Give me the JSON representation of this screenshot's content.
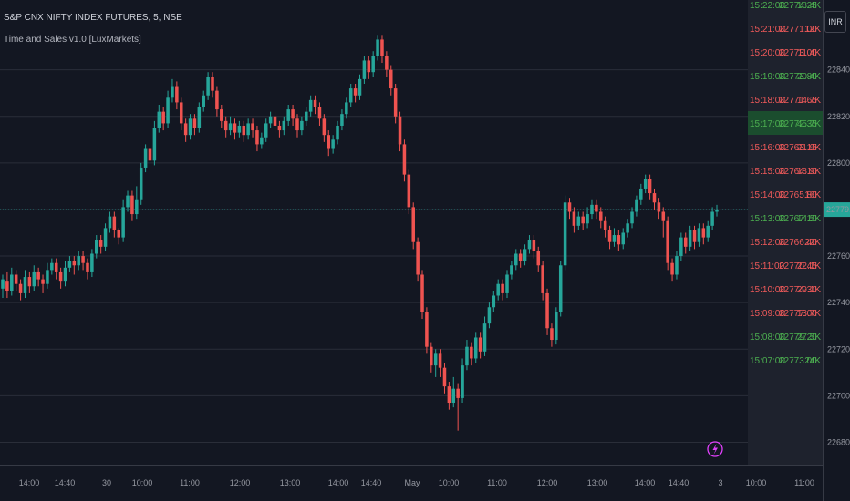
{
  "header": {
    "title": "S&P CNX NIFTY INDEX FUTURES, 5, NSE",
    "indicator": "Time and Sales v1.0 [LuxMarkets]"
  },
  "currency": "INR",
  "current_price": "22779.95",
  "colors": {
    "background": "#131722",
    "up": "#26a69a",
    "down": "#ef5350",
    "ts_up": "#4caf50",
    "ts_down": "#f05a5a",
    "highlight": "#1b4d2e",
    "price_line": "#26a69a",
    "lightning": "#e040fb"
  },
  "chart_data": {
    "type": "candlestick",
    "title": "S&P CNX NIFTY INDEX FUTURES, 5, NSE",
    "y_axis": {
      "ylim": [
        22670,
        22870
      ],
      "ticks": [
        22680,
        22700,
        22720,
        22740,
        22760,
        22780,
        22800,
        22820,
        22840
      ],
      "tick_labels": [
        "22680.00",
        "22700.00",
        "22720.00",
        "22740.00",
        "22760.00",
        "22780.00",
        "22800.00",
        "22820.00",
        "22840.00"
      ]
    },
    "x_axis": {
      "tick_labels": [
        "14:00",
        "14:40",
        "30",
        "10:00",
        "11:00",
        "12:00",
        "13:00",
        "14:00",
        "14:40",
        "May",
        "10:00",
        "11:00",
        "12:00",
        "13:00",
        "14:00",
        "14:40",
        "3",
        "10:00",
        "11:00"
      ]
    },
    "last_price": 22779.95,
    "candles": [
      [
        22746,
        22750,
        22742,
        22752
      ],
      [
        22749,
        22745,
        22742,
        22753
      ],
      [
        22745,
        22752,
        22743,
        22755
      ],
      [
        22752,
        22748,
        22745,
        22754
      ],
      [
        22748,
        22744,
        22741,
        22750
      ],
      [
        22744,
        22751,
        22742,
        22754
      ],
      [
        22751,
        22747,
        22744,
        22753
      ],
      [
        22747,
        22753,
        22745,
        22756
      ],
      [
        22753,
        22750,
        22747,
        22755
      ],
      [
        22750,
        22748,
        22744,
        22752
      ],
      [
        22748,
        22754,
        22746,
        22757
      ],
      [
        22754,
        22757,
        22752,
        22759
      ],
      [
        22757,
        22753,
        22750,
        22759
      ],
      [
        22753,
        22749,
        22746,
        22755
      ],
      [
        22749,
        22755,
        22747,
        22758
      ],
      [
        22755,
        22758,
        22753,
        22760
      ],
      [
        22758,
        22756,
        22752,
        22760
      ],
      [
        22756,
        22760,
        22754,
        22762
      ],
      [
        22760,
        22757,
        22754,
        22762
      ],
      [
        22757,
        22753,
        22750,
        22759
      ],
      [
        22753,
        22761,
        22751,
        22763
      ],
      [
        22761,
        22767,
        22759,
        22769
      ],
      [
        22767,
        22764,
        22761,
        22769
      ],
      [
        22764,
        22772,
        22762,
        22774
      ],
      [
        22772,
        22777,
        22770,
        22779
      ],
      [
        22777,
        22771,
        22768,
        22779
      ],
      [
        22771,
        22768,
        22765,
        22772
      ],
      [
        22768,
        22781,
        22766,
        22784
      ],
      [
        22781,
        22786,
        22779,
        22788
      ],
      [
        22786,
        22778,
        22775,
        22788
      ],
      [
        22778,
        22784,
        22776,
        22790
      ],
      [
        22784,
        22798,
        22782,
        22800
      ],
      [
        22798,
        22806,
        22796,
        22808
      ],
      [
        22806,
        22801,
        22798,
        22808
      ],
      [
        22801,
        22815,
        22799,
        22818
      ],
      [
        22815,
        22822,
        22813,
        22825
      ],
      [
        22822,
        22817,
        22814,
        22824
      ],
      [
        22817,
        22828,
        22815,
        22831
      ],
      [
        22828,
        22833,
        22826,
        22836
      ],
      [
        22833,
        22826,
        22823,
        22835
      ],
      [
        22826,
        22817,
        22814,
        22828
      ],
      [
        22817,
        22812,
        22809,
        22819
      ],
      [
        22812,
        22819,
        22810,
        22821
      ],
      [
        22819,
        22815,
        22812,
        22821
      ],
      [
        22815,
        22824,
        22813,
        22826
      ],
      [
        22824,
        22829,
        22822,
        22831
      ],
      [
        22829,
        22837,
        22827,
        22839
      ],
      [
        22837,
        22831,
        22828,
        22839
      ],
      [
        22831,
        22823,
        22820,
        22833
      ],
      [
        22823,
        22818,
        22815,
        22825
      ],
      [
        22818,
        22814,
        22811,
        22820
      ],
      [
        22814,
        22817,
        22812,
        22820
      ],
      [
        22817,
        22813,
        22810,
        22819
      ],
      [
        22813,
        22816,
        22811,
        22818
      ],
      [
        22816,
        22812,
        22809,
        22818
      ],
      [
        22812,
        22817,
        22810,
        22819
      ],
      [
        22817,
        22814,
        22811,
        22819
      ],
      [
        22814,
        22808,
        22805,
        22816
      ],
      [
        22808,
        22811,
        22806,
        22813
      ],
      [
        22811,
        22817,
        22809,
        22819
      ],
      [
        22817,
        22820,
        22815,
        22822
      ],
      [
        22820,
        22816,
        22813,
        22822
      ],
      [
        22816,
        22814,
        22811,
        22818
      ],
      [
        22814,
        22818,
        22812,
        22820
      ],
      [
        22818,
        22823,
        22816,
        22825
      ],
      [
        22823,
        22819,
        22816,
        22825
      ],
      [
        22819,
        22814,
        22811,
        22821
      ],
      [
        22814,
        22818,
        22812,
        22820
      ],
      [
        22818,
        22822,
        22816,
        22824
      ],
      [
        22822,
        22827,
        22820,
        22829
      ],
      [
        22827,
        22824,
        22821,
        22829
      ],
      [
        22824,
        22819,
        22816,
        22826
      ],
      [
        22819,
        22812,
        22809,
        22821
      ],
      [
        22812,
        22806,
        22803,
        22814
      ],
      [
        22806,
        22810,
        22804,
        22812
      ],
      [
        22810,
        22816,
        22808,
        22818
      ],
      [
        22816,
        22821,
        22814,
        22823
      ],
      [
        22821,
        22826,
        22819,
        22828
      ],
      [
        22826,
        22832,
        22824,
        22834
      ],
      [
        22832,
        22829,
        22826,
        22834
      ],
      [
        22829,
        22836,
        22827,
        22838
      ],
      [
        22836,
        22844,
        22834,
        22846
      ],
      [
        22844,
        22839,
        22836,
        22846
      ],
      [
        22839,
        22846,
        22837,
        22848
      ],
      [
        22846,
        22853,
        22844,
        22855
      ],
      [
        22853,
        22846,
        22843,
        22855
      ],
      [
        22846,
        22840,
        22837,
        22848
      ],
      [
        22840,
        22832,
        22829,
        22842
      ],
      [
        22832,
        22820,
        22817,
        22834
      ],
      [
        22820,
        22808,
        22805,
        22822
      ],
      [
        22808,
        22795,
        22792,
        22810
      ],
      [
        22795,
        22781,
        22778,
        22797
      ],
      [
        22781,
        22766,
        22763,
        22783
      ],
      [
        22766,
        22752,
        22749,
        22768
      ],
      [
        22752,
        22736,
        22733,
        22754
      ],
      [
        22736,
        22721,
        22718,
        22738
      ],
      [
        22721,
        22713,
        22710,
        22723
      ],
      [
        22713,
        22718,
        22708,
        22720
      ],
      [
        22718,
        22712,
        22708,
        22720
      ],
      [
        22712,
        22704,
        22701,
        22714
      ],
      [
        22704,
        22697,
        22694,
        22706
      ],
      [
        22697,
        22703,
        22695,
        22708
      ],
      [
        22703,
        22699,
        22685,
        22705
      ],
      [
        22699,
        22713,
        22697,
        22716
      ],
      [
        22713,
        22721,
        22711,
        22724
      ],
      [
        22721,
        22716,
        22713,
        22723
      ],
      [
        22716,
        22725,
        22714,
        22727
      ],
      [
        22725,
        22719,
        22716,
        22727
      ],
      [
        22719,
        22731,
        22717,
        22734
      ],
      [
        22731,
        22738,
        22729,
        22740
      ],
      [
        22738,
        22743,
        22736,
        22745
      ],
      [
        22743,
        22748,
        22741,
        22750
      ],
      [
        22748,
        22744,
        22741,
        22750
      ],
      [
        22744,
        22752,
        22742,
        22754
      ],
      [
        22752,
        22756,
        22750,
        22758
      ],
      [
        22756,
        22761,
        22754,
        22763
      ],
      [
        22761,
        22758,
        22755,
        22763
      ],
      [
        22758,
        22763,
        22756,
        22765
      ],
      [
        22763,
        22767,
        22761,
        22769
      ],
      [
        22767,
        22762,
        22759,
        22769
      ],
      [
        22762,
        22756,
        22753,
        22764
      ],
      [
        22756,
        22744,
        22741,
        22758
      ],
      [
        22744,
        22729,
        22726,
        22746
      ],
      [
        22729,
        22724,
        22721,
        22731
      ],
      [
        22724,
        22736,
        22722,
        22738
      ],
      [
        22736,
        22756,
        22734,
        22758
      ],
      [
        22756,
        22783,
        22754,
        22786
      ],
      [
        22783,
        22779,
        22776,
        22785
      ],
      [
        22779,
        22773,
        22770,
        22781
      ],
      [
        22773,
        22777,
        22771,
        22779
      ],
      [
        22777,
        22774,
        22771,
        22779
      ],
      [
        22774,
        22778,
        22772,
        22781
      ],
      [
        22778,
        22782,
        22776,
        22784
      ],
      [
        22782,
        22779,
        22776,
        22784
      ],
      [
        22779,
        22775,
        22772,
        22781
      ],
      [
        22775,
        22771,
        22768,
        22777
      ],
      [
        22771,
        22766,
        22763,
        22773
      ],
      [
        22766,
        22769,
        22764,
        22772
      ],
      [
        22769,
        22765,
        22762,
        22771
      ],
      [
        22765,
        22770,
        22763,
        22772
      ],
      [
        22770,
        22774,
        22768,
        22776
      ],
      [
        22774,
        22779,
        22772,
        22781
      ],
      [
        22779,
        22784,
        22777,
        22786
      ],
      [
        22784,
        22789,
        22782,
        22791
      ],
      [
        22789,
        22793,
        22787,
        22795
      ],
      [
        22793,
        22787,
        22784,
        22795
      ],
      [
        22787,
        22783,
        22780,
        22789
      ],
      [
        22783,
        22779,
        22776,
        22785
      ],
      [
        22779,
        22775,
        22768,
        22781
      ],
      [
        22775,
        22757,
        22754,
        22777
      ],
      [
        22757,
        22752,
        22749,
        22759
      ],
      [
        22752,
        22760,
        22750,
        22762
      ],
      [
        22760,
        22768,
        22758,
        22770
      ],
      [
        22768,
        22764,
        22761,
        22770
      ],
      [
        22764,
        22771,
        22762,
        22773
      ],
      [
        22771,
        22766,
        22763,
        22773
      ],
      [
        22766,
        22772,
        22764,
        22774
      ],
      [
        22772,
        22768,
        22765,
        22774
      ],
      [
        22768,
        22773,
        22766,
        22775
      ],
      [
        22773,
        22779,
        22771,
        22781
      ],
      [
        22779,
        22780,
        22777,
        22782
      ]
    ]
  },
  "time_and_sales": [
    {
      "time": "15:22:00",
      "price": "22774.25",
      "size": "18.4K",
      "dir": "up"
    },
    {
      "time": "15:21:00",
      "price": "22771.00",
      "size": "12K",
      "dir": "down"
    },
    {
      "time": "15:20:00",
      "price": "22773.00",
      "size": "11.4K",
      "dir": "down"
    },
    {
      "time": "15:19:00",
      "price": "22773.80",
      "size": "20.4K",
      "dir": "up"
    },
    {
      "time": "15:18:00",
      "price": "22771.65",
      "size": "14.7K",
      "dir": "down"
    },
    {
      "time": "15:17:00",
      "price": "22772.35",
      "size": "45.7K",
      "dir": "up",
      "highlight": true
    },
    {
      "time": "15:16:00",
      "price": "22763.15",
      "size": "21.9K",
      "dir": "down"
    },
    {
      "time": "15:15:00",
      "price": "22764.10",
      "size": "18.9K",
      "dir": "down"
    },
    {
      "time": "15:14:00",
      "price": "22765.80",
      "size": "16K",
      "dir": "down"
    },
    {
      "time": "15:13:00",
      "price": "22767.10",
      "size": "14.5K",
      "dir": "up"
    },
    {
      "time": "15:12:00",
      "price": "22766.40",
      "size": "22K",
      "dir": "down"
    },
    {
      "time": "15:11:00",
      "price": "22770.45",
      "size": "22.1K",
      "dir": "down"
    },
    {
      "time": "15:10:00",
      "price": "22774.30",
      "size": "29.1K",
      "dir": "down"
    },
    {
      "time": "15:09:00",
      "price": "22777.00",
      "size": "13.7K",
      "dir": "down"
    },
    {
      "time": "15:08:00",
      "price": "22779.20",
      "size": "27.5K",
      "dir": "up"
    },
    {
      "time": "15:07:00",
      "price": "22773.00",
      "size": "24K",
      "dir": "up"
    }
  ]
}
